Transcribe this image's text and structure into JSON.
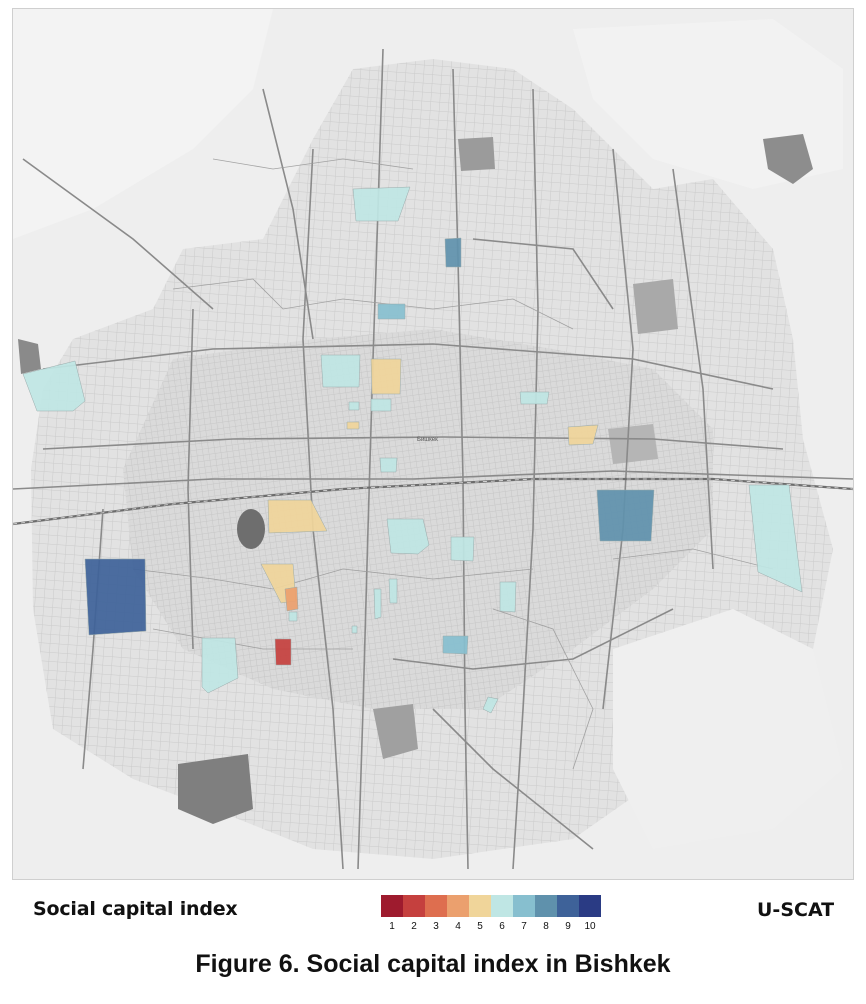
{
  "map": {
    "city_label": "Бишкек",
    "legend": {
      "title": "Social capital index",
      "classes": [
        {
          "label": "1",
          "color": "#9e1b2e"
        },
        {
          "label": "2",
          "color": "#c5403e"
        },
        {
          "label": "3",
          "color": "#de6e4f"
        },
        {
          "label": "4",
          "color": "#eba06e"
        },
        {
          "label": "5",
          "color": "#f0d59a"
        },
        {
          "label": "6",
          "color": "#bfe6e4"
        },
        {
          "label": "7",
          "color": "#87bfcf"
        },
        {
          "label": "8",
          "color": "#5f91ac"
        },
        {
          "label": "9",
          "color": "#3e6299"
        },
        {
          "label": "10",
          "color": "#2a3b84"
        }
      ]
    },
    "districts": [
      {
        "name": "north-upper",
        "index": 6
      },
      {
        "name": "north-blue",
        "index": 8
      },
      {
        "name": "north-center-blue",
        "index": 7
      },
      {
        "name": "west-edge",
        "index": 6
      },
      {
        "name": "center-north-left",
        "index": 6
      },
      {
        "name": "center-north-right",
        "index": 5
      },
      {
        "name": "center-small-1",
        "index": 6
      },
      {
        "name": "center-small-2",
        "index": 5
      },
      {
        "name": "center-small-3",
        "index": 6
      },
      {
        "name": "east-small",
        "index": 6
      },
      {
        "name": "east-orange",
        "index": 5
      },
      {
        "name": "center-mid",
        "index": 6
      },
      {
        "name": "west-orange",
        "index": 5
      },
      {
        "name": "center-south",
        "index": 6
      },
      {
        "name": "south-small",
        "index": 6
      },
      {
        "name": "east-large-blue",
        "index": 8
      },
      {
        "name": "far-east",
        "index": 6
      },
      {
        "name": "west-large-blue",
        "index": 9
      },
      {
        "name": "southwest-orange",
        "index": 5
      },
      {
        "name": "southwest-small-orange",
        "index": 4
      },
      {
        "name": "southwest-small-teal",
        "index": 6
      },
      {
        "name": "southwest-red",
        "index": 2
      },
      {
        "name": "southwest-teal",
        "index": 6
      },
      {
        "name": "south-center-small",
        "index": 6
      },
      {
        "name": "south-center-teal",
        "index": 6
      },
      {
        "name": "south-blue",
        "index": 7
      },
      {
        "name": "south-east-small",
        "index": 6
      },
      {
        "name": "south-tiny-1",
        "index": 6
      },
      {
        "name": "south-tiny-2",
        "index": 6
      }
    ]
  },
  "brand": "U-SCAT",
  "caption": "Figure 6. Social capital index in Bishkek"
}
